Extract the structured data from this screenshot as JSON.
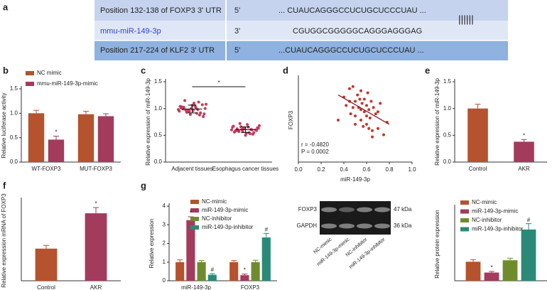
{
  "alignment": {
    "panel": "a",
    "rows": [
      [
        "Position 132-138 of FOXP3 3' UTR",
        "5'",
        "... CUAUCAGGGCCUCUGCUCCCUAU ..."
      ],
      [
        "mmu-miR-149-3p",
        "3'",
        "CGUGGCGGGGGCAGGGAGGGAG"
      ],
      [
        "Position 217-224 of KLF2 3' UTR",
        "5'",
        "...CUAUCAGGGCCUCUGCUCCCUAU ..."
      ]
    ],
    "pairing": "||||||"
  },
  "chart_data": [
    {
      "panel": "b",
      "type": "bar",
      "ylabel": "Relative luciferase activity",
      "categories": [
        "WT-FOXP3",
        "MUT-FOXP3"
      ],
      "series": [
        {
          "name": "NC mimic",
          "color": "#b4532e",
          "values": [
            1.0,
            0.98
          ],
          "errors": [
            0.06,
            0.06
          ]
        },
        {
          "name": "mmu-miR-149-3p-mimic",
          "color": "#a33b5c",
          "values": [
            0.46,
            0.94
          ],
          "errors": [
            0.07,
            0.05
          ]
        }
      ],
      "ylim": [
        0,
        1.5
      ],
      "yticks": [
        {
          "value": 0,
          "label": "0.0"
        },
        {
          "value": 0.5,
          "label": "0.5"
        },
        {
          "value": 1,
          "label": "1.0"
        },
        {
          "value": 1.5,
          "label": "1.5"
        }
      ],
      "annotations": [
        {
          "series": 1,
          "index": 0,
          "text": "*"
        }
      ]
    },
    {
      "panel": "c",
      "type": "strip",
      "ylabel": "Relative expression of miR-149-3p",
      "categories": [
        "Adjacent tissues",
        "Esophagus cancer tissues"
      ],
      "color": "#c23b5a",
      "groups": [
        {
          "values": [
            0.98,
            1.02,
            0.95,
            1.05,
            0.92,
            1.08,
            0.99,
            0.97,
            1.1,
            0.88,
            1.0,
            1.03,
            0.94,
            0.96,
            1.12,
            0.9,
            1.01,
            0.93,
            1.06,
            0.98,
            0.85,
            1.04,
            0.97,
            1.0,
            0.91,
            1.07,
            0.95,
            1.15,
            0.89,
            1.02
          ]
        },
        {
          "values": [
            0.6,
            0.62,
            0.57,
            0.65,
            0.55,
            0.68,
            0.59,
            0.61,
            0.7,
            0.52,
            0.63,
            0.58,
            0.66,
            0.54,
            0.6,
            0.64,
            0.56,
            0.72,
            0.5,
            0.61,
            0.59,
            0.67,
            0.57,
            0.62,
            0.53,
            0.6,
            0.65,
            0.58,
            0.63,
            0.55
          ]
        }
      ],
      "ylim": [
        0,
        1.5
      ],
      "yticks": [
        {
          "value": 0,
          "label": "0.0"
        },
        {
          "value": 0.5,
          "label": "0.5"
        },
        {
          "value": 1,
          "label": "1.0"
        },
        {
          "value": 1.5,
          "label": "1.5"
        }
      ],
      "annotation": "*"
    },
    {
      "panel": "d",
      "type": "scatter",
      "xlabel": "miR-149-3p",
      "ylabel": "FOXP3",
      "color": "#c0392b",
      "x": [
        0.35,
        0.4,
        0.42,
        0.45,
        0.46,
        0.48,
        0.5,
        0.5,
        0.52,
        0.53,
        0.55,
        0.55,
        0.56,
        0.57,
        0.58,
        0.58,
        0.6,
        0.6,
        0.61,
        0.62,
        0.63,
        0.64,
        0.65,
        0.66,
        0.68,
        0.7,
        0.72,
        0.75,
        0.78,
        0.45,
        0.5,
        0.55,
        0.6,
        0.65,
        0.7,
        0.54,
        0.62,
        0.48
      ],
      "y": [
        2.0,
        3.1,
        2.7,
        3.5,
        2.3,
        3.6,
        2.9,
        2.2,
        3.2,
        2.6,
        3.4,
        2.0,
        2.8,
        1.7,
        3.0,
        2.4,
        2.7,
        1.8,
        3.3,
        2.5,
        2.1,
        2.9,
        1.5,
        2.6,
        2.3,
        1.6,
        2.8,
        1.3,
        1.9,
        2.9,
        1.8,
        2.5,
        2.2,
        1.2,
        2.4,
        3.0,
        1.6,
        2.6
      ],
      "trendline": {
        "x": [
          0.35,
          0.8
        ],
        "y": [
          3.2,
          1.8
        ],
        "color": "#8b1a2b"
      },
      "xlim": [
        0,
        1
      ],
      "xticks": [
        {
          "value": 0,
          "label": "0.0"
        },
        {
          "value": 0.2,
          "label": "0.2"
        },
        {
          "value": 0.4,
          "label": "0.4"
        },
        {
          "value": 0.6,
          "label": "0.6"
        },
        {
          "value": 0.8,
          "label": "0.8"
        },
        {
          "value": 1,
          "label": "1.0"
        }
      ],
      "ylim": [
        0,
        4
      ],
      "stats": [
        "r = -0.4820",
        "P = 0.0002"
      ]
    },
    {
      "panel": "e",
      "type": "bar",
      "ylabel": "Relative expression of miR-149-3p",
      "categories": [
        "Control",
        "AKR"
      ],
      "values": [
        1.0,
        0.38
      ],
      "errors": [
        0.08,
        0.04
      ],
      "colors": [
        "#b4532e",
        "#a33b5c"
      ],
      "ylim": [
        0,
        1.5
      ],
      "yticks": [
        {
          "value": 0,
          "label": "0.0"
        },
        {
          "value": 0.5,
          "label": "0.5"
        },
        {
          "value": 1,
          "label": "1.0"
        },
        {
          "value": 1.5,
          "label": "1.5"
        }
      ],
      "annotations": [
        {
          "index": 1,
          "text": "*"
        }
      ]
    },
    {
      "panel": "f",
      "type": "bar",
      "ylabel": "Relative expression mRNA of FOXP3",
      "categories": [
        "Control",
        "AKR"
      ],
      "values": [
        1.0,
        2.1
      ],
      "errors": [
        0.1,
        0.18
      ],
      "colors": [
        "#b4532e",
        "#a33b5c"
      ],
      "ylim": [
        0,
        2.5
      ],
      "annotations": [
        {
          "index": 1,
          "text": "*"
        }
      ]
    },
    {
      "panel": "g",
      "type": "bar",
      "ylabel": "Relative expression",
      "categories": [
        "miR-149-3p",
        "FOXP3"
      ],
      "series": [
        {
          "name": "NC-mimic",
          "color": "#b4532e",
          "values": [
            1.0,
            1.0
          ],
          "errors": [
            0.12,
            0.08
          ]
        },
        {
          "name": "miR-149-3p-mimic",
          "color": "#a33b5c",
          "values": [
            3.25,
            0.3
          ],
          "errors": [
            0.18,
            0.06
          ]
        },
        {
          "name": "NC-inhibitor",
          "color": "#6f8c2c",
          "values": [
            1.0,
            1.0
          ],
          "errors": [
            0.08,
            0.1
          ]
        },
        {
          "name": "miR-149-3p-inhibitor",
          "color": "#2b8a77",
          "values": [
            0.32,
            2.32
          ],
          "errors": [
            0.06,
            0.22
          ]
        }
      ],
      "ylim": [
        0,
        4
      ],
      "yticks": [
        0,
        1,
        2,
        3,
        4
      ],
      "annotations": [
        {
          "series": 1,
          "index": 0,
          "text": "*"
        },
        {
          "series": 3,
          "index": 0,
          "text": "#"
        },
        {
          "series": 1,
          "index": 1,
          "text": "*"
        },
        {
          "series": 3,
          "index": 1,
          "text": "#"
        }
      ]
    },
    {
      "type": "bar",
      "ylabel": "Relative protein expression",
      "series": [
        {
          "name": "NC-mimic",
          "color": "#b4532e",
          "values": [
            0.65
          ],
          "errors": [
            0.07
          ]
        },
        {
          "name": "miR-149-3p-mimic",
          "color": "#a33b5c",
          "values": [
            0.28
          ],
          "errors": [
            0.04
          ]
        },
        {
          "name": "NC-inhibitor",
          "color": "#6f8c2c",
          "values": [
            0.7
          ],
          "errors": [
            0.07
          ]
        },
        {
          "name": "miR-149-3p-inhibitor",
          "color": "#2b8a77",
          "values": [
            1.75
          ],
          "errors": [
            0.2
          ]
        }
      ],
      "ylim": [
        0,
        2.5
      ],
      "annotations": [
        {
          "series": 1,
          "index": 0,
          "text": "*"
        },
        {
          "series": 3,
          "index": 0,
          "text": "#"
        }
      ]
    }
  ],
  "blot": {
    "proteins": [
      "FOXP3",
      "GAPDH"
    ],
    "sizes": [
      "47 kDa",
      "36 kDa"
    ],
    "lanes": [
      "NC-mimic",
      "miR-149-3p-mimic",
      "NC-inhibitor",
      "miR-149-3p-inhibitor"
    ]
  }
}
